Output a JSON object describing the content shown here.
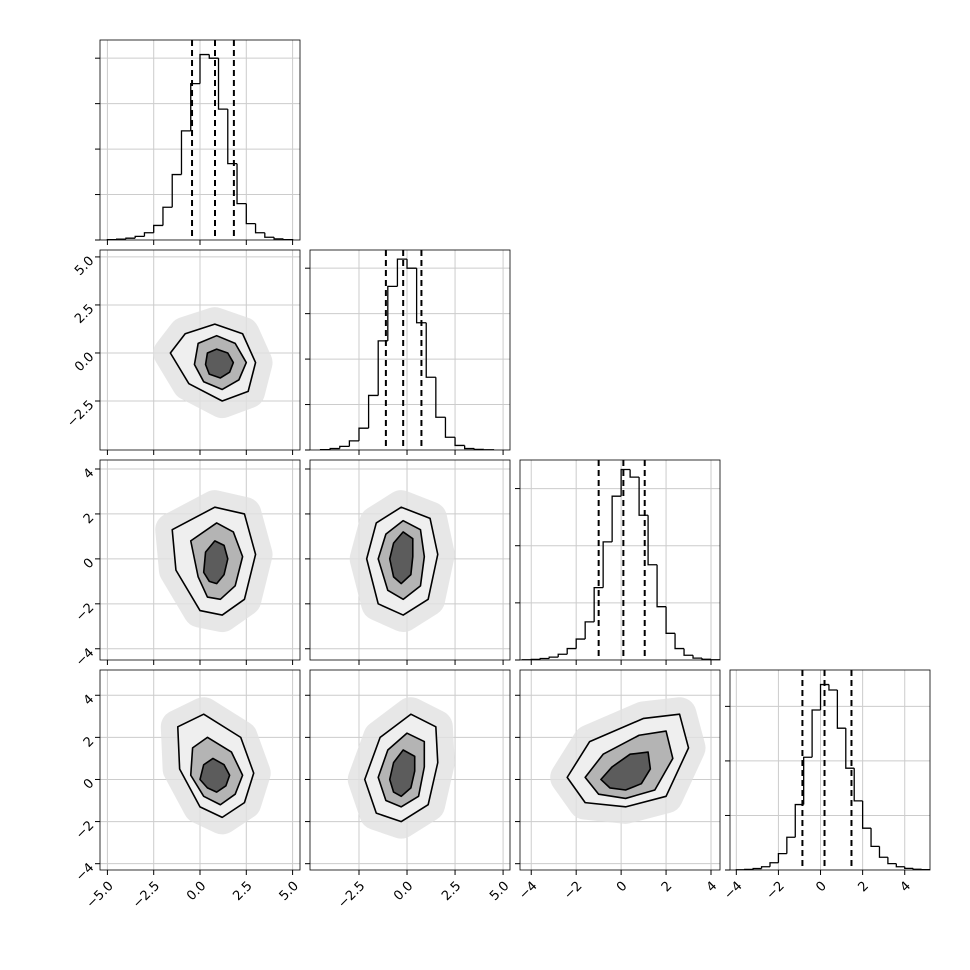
{
  "chart_data": {
    "type": "corner",
    "color": "#000000",
    "grid_color": "#cccccc",
    "contour_fills": [
      "#efefef",
      "#b4b4b4",
      "#5c5c5c"
    ],
    "grid": true,
    "params": [
      {
        "lim": [
          -5.4,
          5.4
        ],
        "ticks": [
          {
            "value": -5,
            "label": "−5.0"
          },
          {
            "value": -2.5,
            "label": "−2.5"
          },
          {
            "value": 0,
            "label": "0.0"
          },
          2.5,
          {
            "value": 5,
            "label": "5.0"
          }
        ],
        "bins": [
          -5.0,
          -4.5,
          -4.0,
          -3.5,
          -3.0,
          -2.5,
          -2.0,
          -1.5,
          -1.0,
          -0.5,
          0.0,
          0.5,
          1.0,
          1.5,
          2.0,
          2.5,
          3.0,
          3.5,
          4.0,
          4.5,
          5.0
        ],
        "counts": [
          2,
          5,
          10,
          20,
          40,
          80,
          180,
          360,
          600,
          860,
          1020,
          1000,
          720,
          420,
          200,
          90,
          40,
          15,
          6,
          2
        ],
        "quantiles": [
          -0.43,
          0.81,
          1.83
        ],
        "hist_ylim": [
          0,
          1100
        ],
        "hist_yticks": [
          0,
          250,
          500,
          750,
          1000
        ],
        "joint": []
      },
      {
        "lim": [
          -5.05,
          5.36
        ],
        "ticks": [
          {
            "value": -2.5,
            "label": "−2.5"
          },
          {
            "value": 0,
            "label": "0.0"
          },
          2.5,
          {
            "value": 5,
            "label": "5.0"
          }
        ],
        "bins": [
          -4.5,
          -4.0,
          -3.5,
          -3.0,
          -2.5,
          -2.0,
          -1.5,
          -1.0,
          -0.5,
          0.0,
          0.5,
          1.0,
          1.5,
          2.0,
          2.5,
          3.0,
          3.5,
          4.0,
          4.5
        ],
        "counts": [
          2,
          8,
          20,
          50,
          120,
          300,
          600,
          900,
          1050,
          1000,
          700,
          400,
          180,
          70,
          25,
          8,
          3,
          1
        ],
        "quantiles": [
          -1.1,
          -0.2,
          0.75
        ],
        "hist_ylim": [
          0,
          1100
        ],
        "hist_yticks": [
          0,
          250,
          500,
          750,
          1000
        ],
        "joint": [
          {
            "contours": [
              {
                "x": [
                  3.0,
                  2.3,
                  0.8,
                  -0.8,
                  -1.6,
                  -0.6,
                  1.2,
                  2.6
                ],
                "y": [
                  -0.5,
                  1.0,
                  1.5,
                  1.0,
                  0.0,
                  -1.6,
                  -2.5,
                  -2.0
                ]
              },
              {
                "x": [
                  2.5,
                  1.9,
                  0.9,
                  -0.1,
                  -0.3,
                  0.2,
                  1.2,
                  2.1
                ],
                "y": [
                  -0.5,
                  0.5,
                  0.9,
                  0.5,
                  -0.6,
                  -1.5,
                  -1.9,
                  -1.4
                ]
              },
              {
                "x": [
                  1.8,
                  1.5,
                  0.9,
                  0.4,
                  0.3,
                  0.5,
                  1.1,
                  1.6
                ],
                "y": [
                  -0.5,
                  0.0,
                  0.2,
                  0.0,
                  -0.6,
                  -1.1,
                  -1.3,
                  -1.0
                ]
              }
            ]
          }
        ]
      },
      {
        "lim": [
          -4.5,
          4.4
        ],
        "ticks": [
          {
            "value": -4,
            "label": "−4"
          },
          {
            "value": -2,
            "label": "−2"
          },
          0,
          2,
          4
        ],
        "bins": [
          -4.4,
          -4.0,
          -3.6,
          -3.2,
          -2.8,
          -2.4,
          -2.0,
          -1.6,
          -1.2,
          -0.8,
          -0.4,
          0.0,
          0.4,
          0.8,
          1.2,
          1.6,
          2.0,
          2.4,
          2.8,
          3.2,
          3.6,
          4.0,
          4.4
        ],
        "counts": [
          1,
          3,
          8,
          15,
          30,
          60,
          110,
          200,
          380,
          620,
          860,
          1000,
          960,
          760,
          500,
          280,
          140,
          60,
          25,
          10,
          4,
          1
        ],
        "quantiles": [
          -1.0,
          0.1,
          1.05
        ],
        "hist_ylim": [
          0,
          1050
        ],
        "hist_yticks": [
          0,
          300,
          600,
          900
        ],
        "joint": [
          {
            "contours": [
              {
                "x": [
                  3.0,
                  2.4,
                  0.8,
                  -1.5,
                  -1.3,
                  0.0,
                  1.2,
                  2.4
                ],
                "y": [
                  0.2,
                  2.0,
                  2.3,
                  1.3,
                  -0.5,
                  -2.3,
                  -2.5,
                  -1.8
                ]
              },
              {
                "x": [
                  2.3,
                  1.8,
                  0.9,
                  -0.5,
                  -0.1,
                  0.4,
                  1.1,
                  1.9
                ],
                "y": [
                  0.1,
                  1.2,
                  1.6,
                  0.8,
                  -0.8,
                  -1.7,
                  -1.8,
                  -1.2
                ]
              },
              {
                "x": [
                  1.5,
                  1.3,
                  0.8,
                  0.3,
                  0.2,
                  0.5,
                  0.9,
                  1.3
                ],
                "y": [
                  0.0,
                  0.6,
                  0.8,
                  0.3,
                  -0.6,
                  -1.0,
                  -1.1,
                  -0.7
                ]
              }
            ]
          },
          {
            "contours": [
              {
                "x": [
                  1.6,
                  1.2,
                  -0.3,
                  -1.6,
                  -2.1,
                  -1.5,
                  -0.2,
                  1.1
                ],
                "y": [
                  0.2,
                  1.8,
                  2.3,
                  1.6,
                  0.0,
                  -2.0,
                  -2.5,
                  -1.8
                ]
              },
              {
                "x": [
                  0.9,
                  0.7,
                  -0.2,
                  -1.1,
                  -1.5,
                  -1.0,
                  -0.2,
                  0.7
                ],
                "y": [
                  0.1,
                  1.3,
                  1.7,
                  1.1,
                  0.0,
                  -1.4,
                  -1.8,
                  -1.2
                ]
              },
              {
                "x": [
                  0.3,
                  0.3,
                  -0.2,
                  -0.7,
                  -0.9,
                  -0.7,
                  -0.3,
                  0.2
                ],
                "y": [
                  0.1,
                  0.9,
                  1.2,
                  0.7,
                  0.0,
                  -0.8,
                  -1.1,
                  -0.7
                ]
              }
            ]
          }
        ]
      },
      {
        "lim": [
          -4.3,
          5.2
        ],
        "ticks": [
          {
            "value": -4,
            "label": "−4"
          },
          {
            "value": -2,
            "label": "−2"
          },
          0,
          2,
          4
        ],
        "bins": [
          -4.0,
          -3.6,
          -3.2,
          -2.8,
          -2.4,
          -2.0,
          -1.6,
          -1.2,
          -0.8,
          -0.4,
          0.0,
          0.4,
          0.8,
          1.2,
          1.6,
          2.0,
          2.4,
          2.8,
          3.2,
          3.6,
          4.0,
          4.4,
          4.8,
          5.2
        ],
        "counts": [
          1,
          3,
          8,
          18,
          40,
          90,
          180,
          360,
          620,
          880,
          1020,
          990,
          780,
          560,
          380,
          230,
          130,
          70,
          35,
          18,
          9,
          4,
          2
        ],
        "quantiles": [
          -0.86,
          0.19,
          1.47
        ],
        "hist_ylim": [
          0,
          1100
        ],
        "hist_yticks": [
          0,
          300,
          600,
          900
        ],
        "joint": [
          {
            "contours": [
              {
                "x": [
                  2.9,
                  2.2,
                  0.2,
                  -1.2,
                  -1.1,
                  0.0,
                  1.2,
                  2.4
                ],
                "y": [
                  0.3,
                  2.0,
                  3.1,
                  2.5,
                  0.5,
                  -1.3,
                  -1.8,
                  -1.1
                ]
              },
              {
                "x": [
                  2.3,
                  1.7,
                  0.4,
                  -0.4,
                  -0.5,
                  0.2,
                  1.1,
                  1.9
                ],
                "y": [
                  0.2,
                  1.3,
                  2.0,
                  1.5,
                  0.2,
                  -0.8,
                  -1.2,
                  -0.7
                ]
              },
              {
                "x": [
                  1.6,
                  1.3,
                  0.7,
                  0.2,
                  0.0,
                  0.4,
                  0.9,
                  1.4
                ],
                "y": [
                  0.2,
                  0.7,
                  1.0,
                  0.7,
                  0.0,
                  -0.4,
                  -0.6,
                  -0.3
                ]
              }
            ]
          },
          {
            "contours": [
              {
                "x": [
                  1.6,
                  1.5,
                  0.2,
                  -1.4,
                  -2.2,
                  -1.6,
                  -0.3,
                  1.1
                ],
                "y": [
                  0.8,
                  2.5,
                  3.1,
                  2.0,
                  0.0,
                  -1.6,
                  -2.0,
                  -1.2
                ]
              },
              {
                "x": [
                  0.9,
                  0.9,
                  0.0,
                  -1.0,
                  -1.5,
                  -1.1,
                  -0.3,
                  0.6
                ],
                "y": [
                  0.6,
                  1.8,
                  2.2,
                  1.4,
                  0.1,
                  -1.0,
                  -1.3,
                  -0.8
                ]
              },
              {
                "x": [
                  0.4,
                  0.4,
                  -0.2,
                  -0.7,
                  -0.9,
                  -0.7,
                  -0.3,
                  0.2
                ],
                "y": [
                  0.4,
                  1.1,
                  1.4,
                  0.8,
                  0.0,
                  -0.6,
                  -0.8,
                  -0.4
                ]
              }
            ]
          },
          {
            "contours": [
              {
                "x": [
                  3.0,
                  2.6,
                  1.0,
                  -1.4,
                  -2.4,
                  -1.6,
                  0.2,
                  2.0
                ],
                "y": [
                  1.5,
                  3.1,
                  2.9,
                  1.8,
                  0.1,
                  -1.1,
                  -1.3,
                  -0.8
                ]
              },
              {
                "x": [
                  2.3,
                  2.0,
                  0.8,
                  -0.8,
                  -1.6,
                  -1.0,
                  0.2,
                  1.5
                ],
                "y": [
                  1.0,
                  2.3,
                  2.1,
                  1.2,
                  0.1,
                  -0.7,
                  -0.9,
                  -0.5
                ]
              },
              {
                "x": [
                  1.3,
                  1.2,
                  0.4,
                  -0.4,
                  -0.9,
                  -0.5,
                  0.2,
                  0.9
                ],
                "y": [
                  0.5,
                  1.3,
                  1.2,
                  0.6,
                  0.0,
                  -0.4,
                  -0.5,
                  -0.2
                ]
              }
            ]
          }
        ]
      }
    ]
  }
}
